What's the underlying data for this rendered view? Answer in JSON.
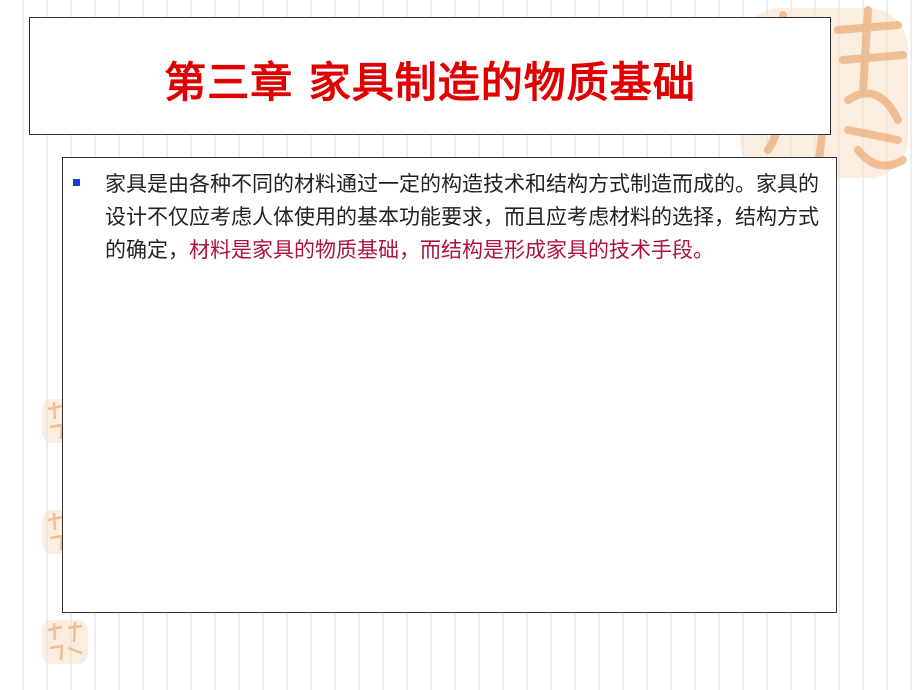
{
  "title": "第三章 家具制造的物质基础",
  "bullet_text": {
    "normal": "家具是由各种不同的材料通过一定的构造技术和结构方式制造而成的。家具的设计不仅应考虑人体使用的基本功能要求，而且应考虑材料的选择，结构方式的确定，",
    "highlight": "材料是家具的物质基础，而结构是形成家具的技术手段。"
  },
  "colors": {
    "title": "#e00000",
    "highlight": "#b0133a",
    "bullet": "#1a3fd8",
    "seal": "#f3c9a0"
  },
  "decorations": [
    "seal-icon"
  ]
}
